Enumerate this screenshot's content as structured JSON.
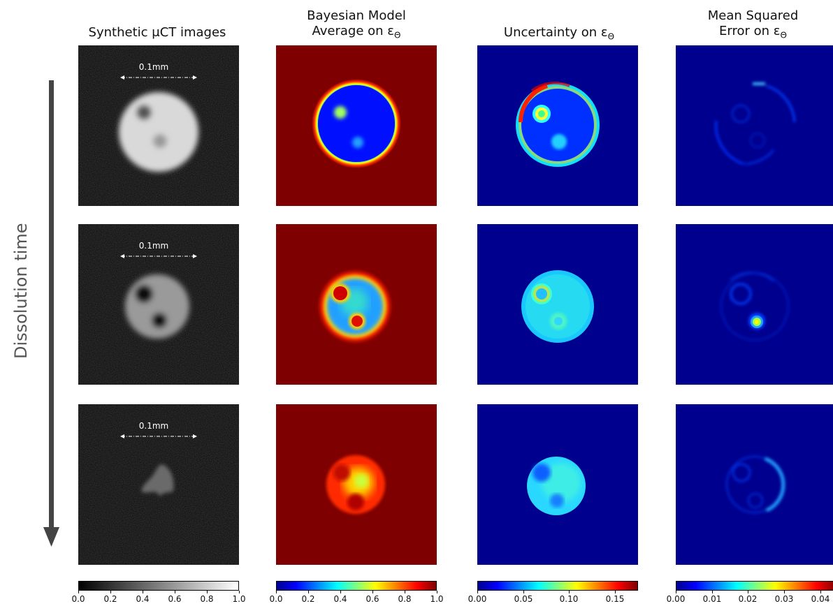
{
  "columns": [
    {
      "title_line1": "Synthetic μCT images",
      "title_line2": ""
    },
    {
      "title_line1": "Bayesian Model",
      "title_line2": "Average on ε",
      "sub": "Θ"
    },
    {
      "title_line1": "Uncertainty on ε",
      "title_line2": "",
      "sub": "Θ"
    },
    {
      "title_line1": "Mean Squared",
      "title_line2": "Error on ε",
      "sub": "Θ"
    }
  ],
  "row_axis_label": "Dissolution time",
  "scalebar_label": "0.1mm",
  "colorbars": [
    {
      "colormap": "gray",
      "ticks": [
        "0.0",
        "0.2",
        "0.4",
        "0.6",
        "0.8",
        "1.0"
      ]
    },
    {
      "colormap": "jet",
      "ticks": [
        "0.0",
        "0.2",
        "0.4",
        "0.6",
        "0.8",
        "1.0"
      ]
    },
    {
      "colormap": "jet",
      "ticks": [
        "0.00",
        "0.05",
        "0.10",
        "0.15"
      ]
    },
    {
      "colormap": "jet",
      "ticks": [
        "0.00",
        "0.01",
        "0.02",
        "0.03",
        "0.04"
      ]
    }
  ],
  "colors": {
    "jet_low": "#00008f",
    "jet_high": "#7f0000",
    "arrow": "#444444"
  }
}
